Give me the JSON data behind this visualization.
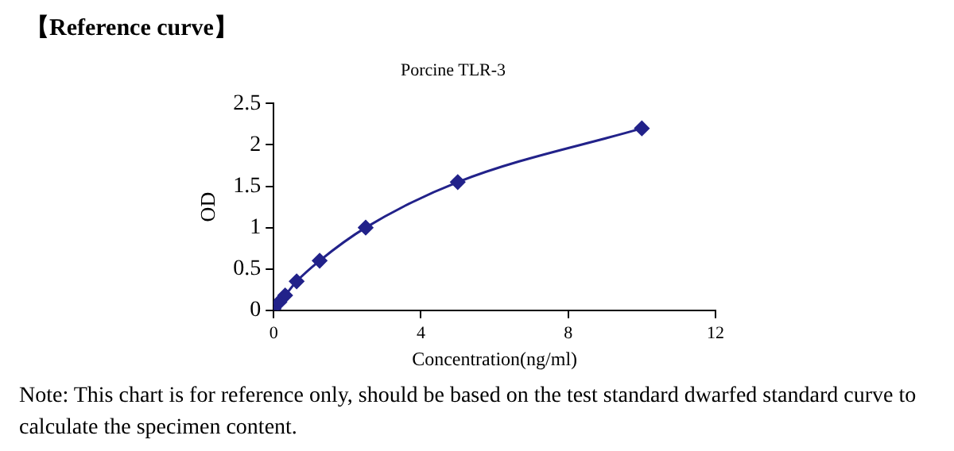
{
  "chart_data": {
    "type": "line",
    "title": "Porcine TLR-3",
    "xlabel": "Concentration(ng/ml)",
    "ylabel": "OD",
    "x": [
      0,
      0.156,
      0.3125,
      0.625,
      1.25,
      2.5,
      5,
      10
    ],
    "series": [
      {
        "color": "#22228a",
        "values": [
          0.02,
          0.1,
          0.18,
          0.35,
          0.6,
          1.0,
          1.55,
          2.2
        ]
      }
    ],
    "xlim": [
      0,
      12
    ],
    "xticks": [
      0,
      4,
      8,
      12
    ],
    "ylim": [
      0,
      2.5
    ],
    "yticks": [
      0,
      0.5,
      1,
      1.5,
      2,
      2.5
    ],
    "grid": false,
    "legend": false,
    "marker": "diamond",
    "line_style": "solid",
    "annotations": [
      "【Reference curve】",
      "Note: This chart is for reference only, should be based on the test standard dwarfed standard curve to calculate the specimen content."
    ]
  }
}
